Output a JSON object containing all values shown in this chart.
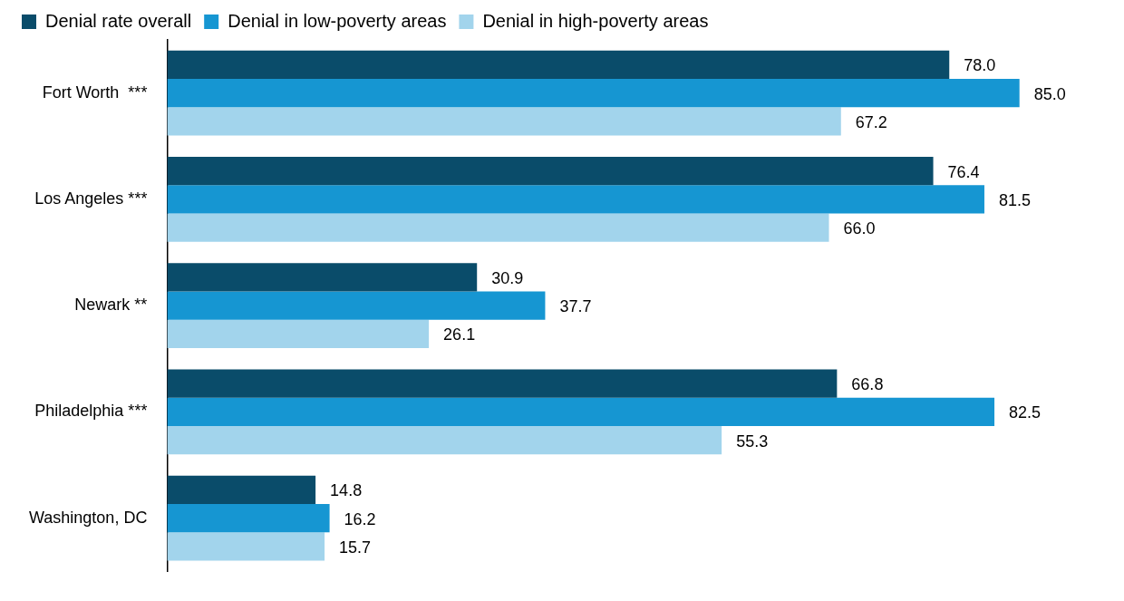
{
  "chart_data": {
    "type": "bar",
    "orientation": "horizontal",
    "legend": "top left",
    "tick_labels": "y",
    "categories": [
      "Fort Worth  ***",
      "Los Angeles ***",
      "Newark **",
      "Philadelphia ***",
      "Washington, DC"
    ],
    "series": [
      {
        "name": "Denial rate overall",
        "color": "#0a4c6a",
        "values": [
          78.0,
          76.4,
          30.9,
          66.8,
          14.8
        ],
        "value_labels": [
          "78.0",
          "76.4",
          "30.9",
          "66.8",
          "14.8"
        ]
      },
      {
        "name": "Denial in low-poverty areas",
        "color": "#1696d2",
        "values": [
          85.0,
          81.5,
          37.7,
          82.5,
          16.2
        ],
        "value_labels": [
          "85.0",
          "81.5",
          "37.7",
          "82.5",
          "16.2"
        ]
      },
      {
        "name": "Denial in high-poverty areas",
        "color": "#a2d4ec",
        "values": [
          67.2,
          66.0,
          26.1,
          55.3,
          15.7
        ],
        "value_labels": [
          "67.2",
          "66.0",
          "26.1",
          "55.3",
          "15.7"
        ]
      }
    ]
  }
}
